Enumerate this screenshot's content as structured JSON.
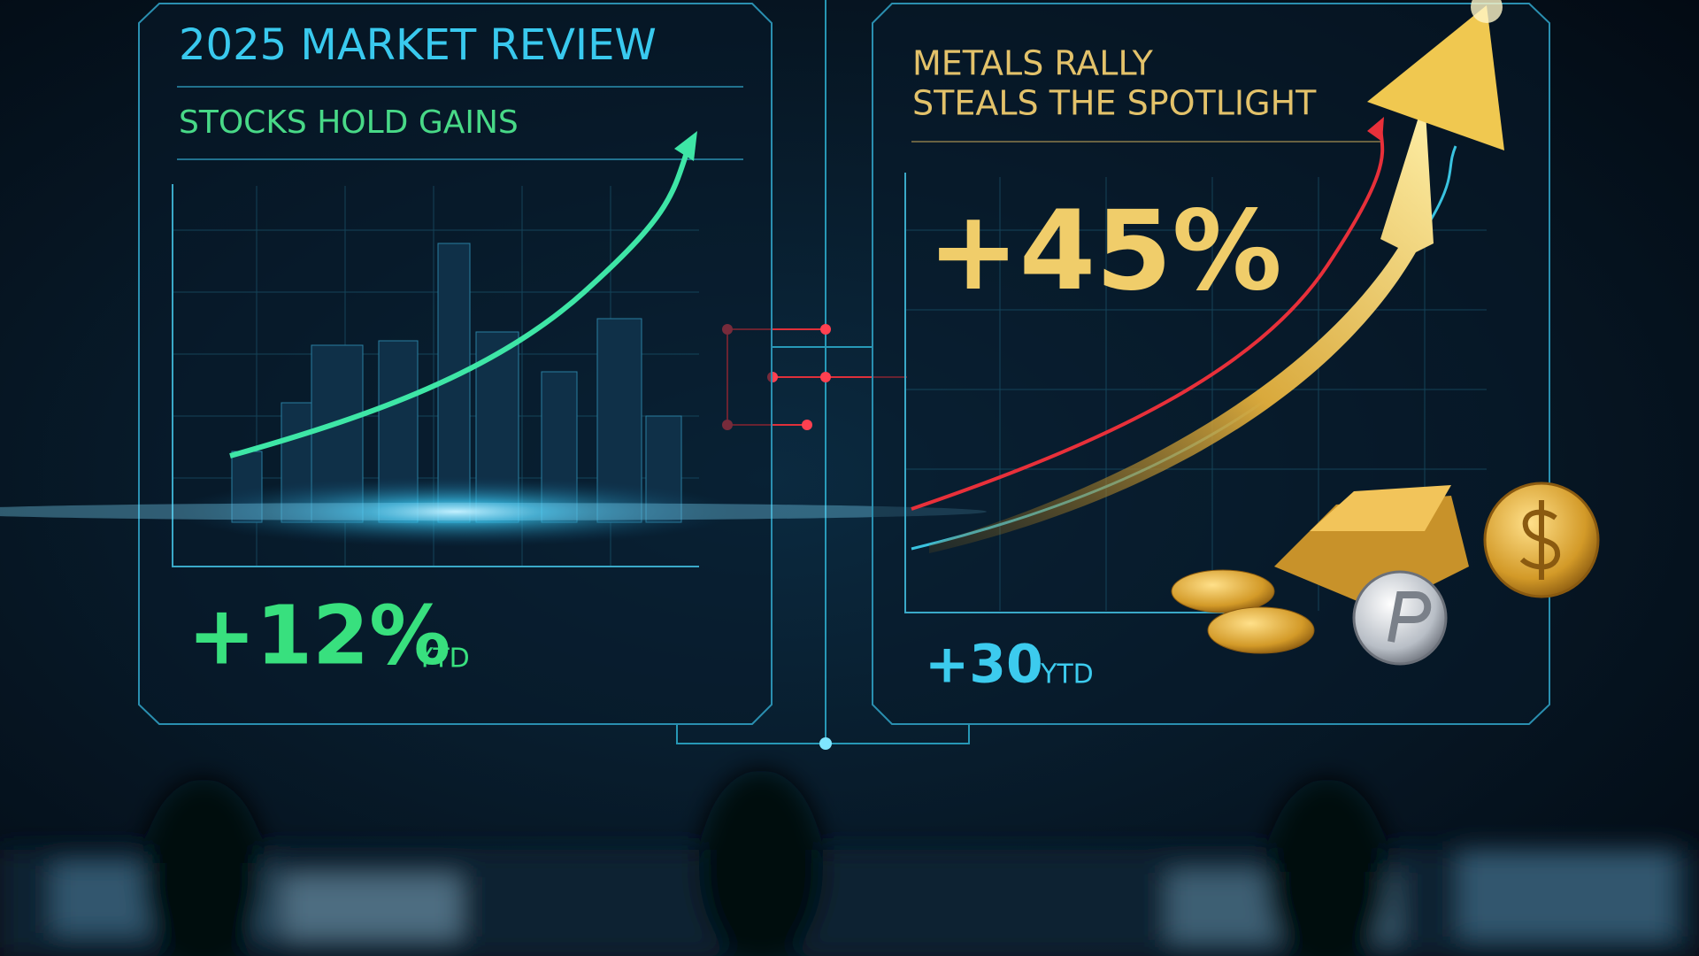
{
  "left_panel": {
    "title": "2025 MARKET REVIEW",
    "subtitle": "STOCKS HOLD GAINS",
    "stat": "+12%",
    "stat_unit": "YTD"
  },
  "right_panel": {
    "title_lines": [
      "METALS RALLY",
      "STEALS THE SPOTLIGHT"
    ],
    "headline_stat": "+45%",
    "stat": "+30",
    "stat_unit": "YTD"
  }
}
